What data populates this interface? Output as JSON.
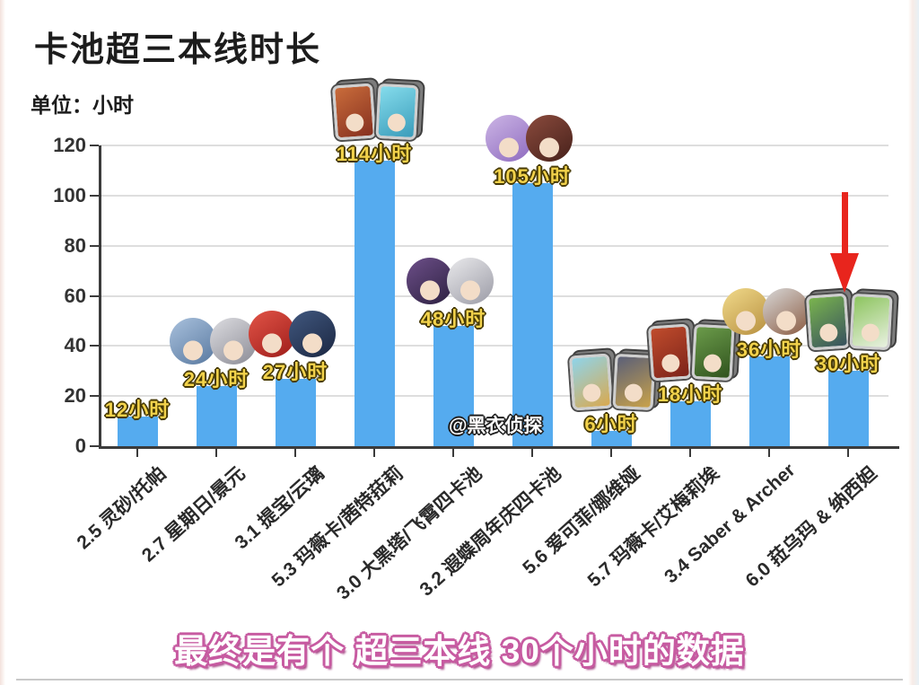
{
  "title": "卡池超三本线时长",
  "unit_label": "单位：小时",
  "watermark": "@黑衣侦探",
  "caption": "最终是有个  超三本线  30个小时的数据",
  "colors": {
    "bar": "#55abef",
    "grid": "#dedede",
    "axis": "#3b3b3b",
    "value_label": "#f2d24b",
    "value_outline": "#473a05",
    "caption_fill": "#ffffff",
    "caption_outline": "#c75ba1",
    "arrow": "#e8251d"
  },
  "chart_data": {
    "type": "bar",
    "title": "卡池超三本线时长",
    "ylabel": "单位：小时",
    "xlabel": "",
    "ylim": [
      0,
      120
    ],
    "y_ticks": [
      0,
      20,
      40,
      60,
      80,
      100,
      120
    ],
    "grid": "horizontal",
    "legend": "none",
    "categories": [
      "2.5 灵砂/托帕",
      "2.7 星期日/景元",
      "3.1 提宝/云璃",
      "5.3 玛薇卡/茜特菈莉",
      "3.0 大黑塔/飞霄四卡池",
      "3.2 遐蝶周年庆四卡池",
      "5.6 爱可菲/娜维娅",
      "5.7 玛薇卡/艾梅莉埃",
      "3.4 Saber & Archer",
      "6.0 菈乌玛 & 纳西妲"
    ],
    "values": [
      12,
      24,
      27,
      114,
      48,
      105,
      6,
      18,
      36,
      30
    ],
    "value_labels": [
      "12小时",
      "24小时",
      "27小时",
      "114小时",
      "48小时",
      "105小时",
      "6小时",
      "18小时",
      "36小时",
      "30小时"
    ],
    "annotation": {
      "text": "红色箭头指向 6.0 菈乌玛 & 纳西妲 的 30小时 柱",
      "arrow_color": "#e8251d",
      "target_index": 9
    },
    "avatars": [
      [],
      [
        {
          "icon": "avatar-sunday-icon",
          "shape": "circle",
          "c1": "#a9c1dd",
          "c2": "#58789f"
        },
        {
          "icon": "avatar-jingyuan-icon",
          "shape": "circle",
          "c1": "#dddde1",
          "c2": "#8b8b95"
        }
      ],
      [
        {
          "icon": "avatar-tribbie-icon",
          "shape": "circle",
          "c1": "#e25447",
          "c2": "#9e1d1a"
        },
        {
          "icon": "avatar-yunli-icon",
          "shape": "circle",
          "c1": "#41587f",
          "c2": "#1b2742"
        }
      ],
      [
        {
          "icon": "avatar-mavuika-icon",
          "shape": "card",
          "c1": "#c96c3b",
          "c2": "#86301f"
        },
        {
          "icon": "avatar-citlali-icon",
          "shape": "card",
          "c1": "#85dcec",
          "c2": "#3a9cba"
        }
      ],
      [
        {
          "icon": "avatar-the-herta-icon",
          "shape": "circle",
          "c1": "#6d4f89",
          "c2": "#2c2040"
        },
        {
          "icon": "avatar-feixiao-icon",
          "shape": "circle",
          "c1": "#eaeaec",
          "c2": "#9b9ba6"
        }
      ],
      [
        {
          "icon": "avatar-castorice-icon",
          "shape": "circle",
          "c1": "#ccb5e5",
          "c2": "#8e6bbf"
        },
        {
          "icon": "avatar-anniversary-icon",
          "shape": "circle",
          "c1": "#8b4b3d",
          "c2": "#47211b"
        }
      ],
      [
        {
          "icon": "avatar-escoffier-icon",
          "shape": "card",
          "c1": "#8fd4ea",
          "c2": "#d9a94f"
        },
        {
          "icon": "avatar-navia-icon",
          "shape": "card",
          "c1": "#5a5f78",
          "c2": "#c9a24a"
        }
      ],
      [
        {
          "icon": "avatar-mavuika-icon",
          "shape": "card",
          "c1": "#c04c2c",
          "c2": "#7c231a"
        },
        {
          "icon": "avatar-emilie-icon",
          "shape": "card",
          "c1": "#6b9b4a",
          "c2": "#30531e"
        }
      ],
      [
        {
          "icon": "avatar-saber-icon",
          "shape": "circle",
          "c1": "#f1da8b",
          "c2": "#b78f3f"
        },
        {
          "icon": "avatar-archer-icon",
          "shape": "circle",
          "c1": "#d9d9d9",
          "c2": "#8a5a40"
        }
      ],
      [
        {
          "icon": "avatar-lauma-icon",
          "shape": "card",
          "c1": "#7ab44e",
          "c2": "#37515e"
        },
        {
          "icon": "avatar-nahida-icon",
          "shape": "card",
          "c1": "#8cc45e",
          "c2": "#e9f1e1"
        }
      ]
    ]
  }
}
